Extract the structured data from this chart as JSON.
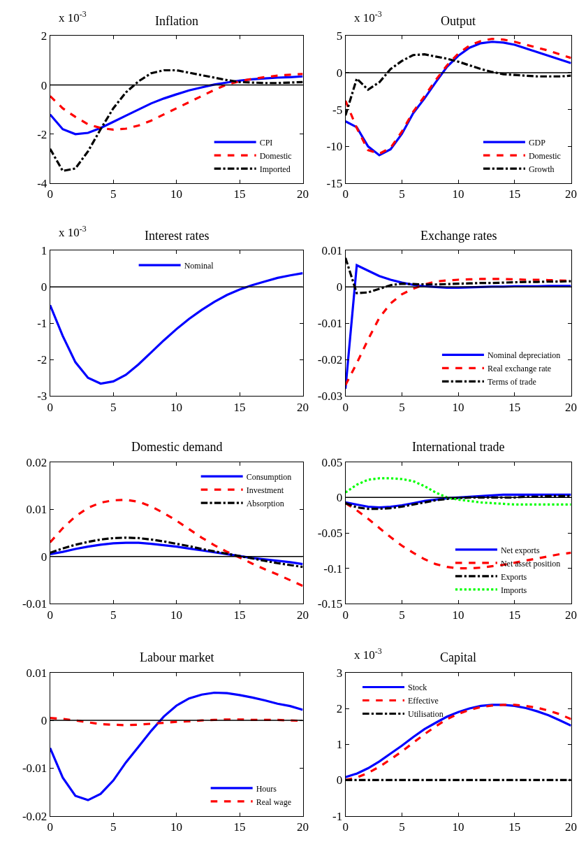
{
  "chart_data": [
    {
      "type": "line",
      "title": "Inflation",
      "annotations": [
        "x 10$^{-3}$"
      ],
      "x": [
        0,
        1,
        2,
        3,
        4,
        5,
        6,
        7,
        8,
        9,
        10,
        11,
        12,
        13,
        14,
        15,
        16,
        17,
        18,
        19,
        20
      ],
      "xlim": [
        0,
        20
      ],
      "xticks": [
        0,
        5,
        10,
        15,
        20
      ],
      "ylim": [
        -4,
        2
      ],
      "yticks": [
        -4,
        -2,
        0,
        2
      ],
      "legend": "bottom right",
      "ref_lines": [
        {
          "axis": "y",
          "value": 0,
          "color": "#000000"
        }
      ],
      "series": [
        {
          "name": "CPI",
          "color": "#0000ff",
          "line_style": "solid",
          "values": [
            -1.2,
            -1.8,
            -2.0,
            -1.95,
            -1.75,
            -1.5,
            -1.25,
            -1.0,
            -0.75,
            -0.55,
            -0.38,
            -0.22,
            -0.1,
            0.02,
            0.1,
            0.18,
            0.23,
            0.27,
            0.3,
            0.32,
            0.35
          ]
        },
        {
          "name": "Domestic",
          "color": "#ff0000",
          "line_style": "dashed",
          "values": [
            -0.45,
            -0.95,
            -1.3,
            -1.6,
            -1.75,
            -1.82,
            -1.78,
            -1.65,
            -1.45,
            -1.2,
            -0.95,
            -0.7,
            -0.45,
            -0.2,
            0.02,
            0.15,
            0.25,
            0.32,
            0.38,
            0.42,
            0.45
          ]
        },
        {
          "name": "Imported",
          "color": "#000000",
          "line_style": "dashdot",
          "values": [
            -2.6,
            -3.5,
            -3.4,
            -2.7,
            -1.8,
            -0.95,
            -0.3,
            0.15,
            0.48,
            0.6,
            0.6,
            0.5,
            0.4,
            0.3,
            0.2,
            0.12,
            0.1,
            0.08,
            0.08,
            0.1,
            0.12
          ]
        }
      ]
    },
    {
      "type": "line",
      "title": "Output",
      "annotations": [
        "x 10$^{-3}$"
      ],
      "x": [
        0,
        1,
        2,
        3,
        4,
        5,
        6,
        7,
        8,
        9,
        10,
        11,
        12,
        13,
        14,
        15,
        16,
        17,
        18,
        19,
        20
      ],
      "xlim": [
        0,
        20
      ],
      "xticks": [
        0,
        5,
        10,
        15,
        20
      ],
      "ylim": [
        -15,
        5
      ],
      "yticks": [
        -15,
        -10,
        -5,
        0,
        5
      ],
      "legend": "bottom right",
      "ref_lines": [
        {
          "axis": "y",
          "value": 0,
          "color": "#000000"
        }
      ],
      "series": [
        {
          "name": "GDP",
          "color": "#0000ff",
          "line_style": "solid",
          "values": [
            -6.6,
            -7.4,
            -10,
            -11.2,
            -10.4,
            -8.3,
            -5.5,
            -3.5,
            -1.3,
            0.8,
            2.3,
            3.4,
            4.0,
            4.2,
            4.1,
            3.8,
            3.3,
            2.8,
            2.3,
            1.8,
            1.3
          ]
        },
        {
          "name": "Domestic",
          "color": "#ff0000",
          "line_style": "dashed",
          "values": [
            -3.8,
            -7.5,
            -10.5,
            -11.0,
            -10.2,
            -8.0,
            -5.3,
            -3.2,
            -1.0,
            1.0,
            2.6,
            3.7,
            4.3,
            4.6,
            4.5,
            4.2,
            3.8,
            3.4,
            3.0,
            2.5,
            2.0
          ]
        },
        {
          "name": "Growth",
          "color": "#000000",
          "line_style": "dashdot",
          "values": [
            -5.8,
            -0.8,
            -2.3,
            -1.3,
            0.5,
            1.6,
            2.4,
            2.5,
            2.2,
            1.9,
            1.5,
            1.0,
            0.5,
            0.1,
            -0.2,
            -0.3,
            -0.4,
            -0.5,
            -0.5,
            -0.5,
            -0.4
          ]
        }
      ]
    },
    {
      "type": "line",
      "title": "Interest rates",
      "annotations": [
        "x 10$^{-3}$"
      ],
      "x": [
        0,
        1,
        2,
        3,
        4,
        5,
        6,
        7,
        8,
        9,
        10,
        11,
        12,
        13,
        14,
        15,
        16,
        17,
        18,
        19,
        20
      ],
      "xlim": [
        0,
        20
      ],
      "xticks": [
        0,
        5,
        10,
        15,
        20
      ],
      "ylim": [
        -3,
        1
      ],
      "yticks": [
        -3,
        -2,
        -1,
        0,
        1
      ],
      "legend": "top",
      "ref_lines": [
        {
          "axis": "y",
          "value": 0,
          "color": "#000000"
        }
      ],
      "series": [
        {
          "name": "Nominal",
          "color": "#0000ff",
          "line_style": "solid",
          "values": [
            -0.5,
            -1.35,
            -2.07,
            -2.5,
            -2.66,
            -2.6,
            -2.42,
            -2.13,
            -1.8,
            -1.47,
            -1.16,
            -0.88,
            -0.63,
            -0.41,
            -0.22,
            -0.07,
            0.05,
            0.15,
            0.25,
            0.32,
            0.38
          ]
        }
      ]
    },
    {
      "type": "line",
      "title": "Exchange rates",
      "x": [
        0,
        1,
        2,
        3,
        4,
        5,
        6,
        7,
        8,
        9,
        10,
        11,
        12,
        13,
        14,
        15,
        16,
        17,
        18,
        19,
        20
      ],
      "xlim": [
        0,
        20
      ],
      "xticks": [
        0,
        5,
        10,
        15,
        20
      ],
      "ylim": [
        -0.03,
        0.01
      ],
      "yticks": [
        -0.03,
        -0.02,
        -0.01,
        0,
        0.01
      ],
      "legend": "bottom right",
      "ref_lines": [
        {
          "axis": "y",
          "value": 0,
          "color": "#000000"
        }
      ],
      "series": [
        {
          "name": "Nominal depreciation",
          "color": "#0000ff",
          "line_style": "solid",
          "values": [
            -0.028,
            0.006,
            0.0045,
            0.003,
            0.002,
            0.0012,
            0.0006,
            0.0002,
            0.0,
            -0.0002,
            -0.0002,
            -0.0001,
            0.0,
            0.0001,
            0.0001,
            0.0002,
            0.0002,
            0.0002,
            0.0003,
            0.0003,
            0.0003
          ]
        },
        {
          "name": "Real exchange rate",
          "color": "#ff0000",
          "line_style": "dashed",
          "values": [
            -0.027,
            -0.021,
            -0.0145,
            -0.0085,
            -0.0045,
            -0.002,
            -0.0005,
            0.0007,
            0.0015,
            0.0018,
            0.002,
            0.0021,
            0.0022,
            0.0022,
            0.0022,
            0.0021,
            0.002,
            0.002,
            0.0019,
            0.0018,
            0.0017
          ]
        },
        {
          "name": "Terms of trade",
          "color": "#000000",
          "line_style": "dashdot",
          "values": [
            0.008,
            -0.0017,
            -0.0015,
            -0.0005,
            0.0005,
            0.0009,
            0.0008,
            0.0007,
            0.0007,
            0.0008,
            0.0009,
            0.001,
            0.0011,
            0.0011,
            0.0012,
            0.0013,
            0.0014,
            0.0014,
            0.0015,
            0.0015,
            0.0016
          ]
        }
      ]
    },
    {
      "type": "line",
      "title": "Domestic demand",
      "x": [
        0,
        1,
        2,
        3,
        4,
        5,
        6,
        7,
        8,
        9,
        10,
        11,
        12,
        13,
        14,
        15,
        16,
        17,
        18,
        19,
        20
      ],
      "xlim": [
        0,
        20
      ],
      "xticks": [
        0,
        5,
        10,
        15,
        20
      ],
      "ylim": [
        -0.01,
        0.02
      ],
      "yticks": [
        -0.01,
        0,
        0.01,
        0.02
      ],
      "legend": "top right",
      "ref_lines": [
        {
          "axis": "y",
          "value": 0,
          "color": "#000000"
        }
      ],
      "series": [
        {
          "name": "Consumption",
          "color": "#0000ff",
          "line_style": "solid",
          "values": [
            0.0005,
            0.001,
            0.0016,
            0.0021,
            0.0025,
            0.0028,
            0.0029,
            0.0029,
            0.0027,
            0.0024,
            0.0021,
            0.0017,
            0.0013,
            0.0009,
            0.0005,
            0.0001,
            -0.0003,
            -0.0006,
            -0.0009,
            -0.0012,
            -0.0016
          ]
        },
        {
          "name": "Investment",
          "color": "#ff0000",
          "line_style": "dashed",
          "values": [
            0.003,
            0.006,
            0.0085,
            0.0103,
            0.0114,
            0.0119,
            0.012,
            0.0116,
            0.0106,
            0.0092,
            0.0076,
            0.0058,
            0.004,
            0.0024,
            0.001,
            -0.0002,
            -0.0015,
            -0.0027,
            -0.0038,
            -0.005,
            -0.0062
          ]
        },
        {
          "name": "Absorption",
          "color": "#000000",
          "line_style": "dashdot",
          "values": [
            0.0008,
            0.0017,
            0.0025,
            0.0031,
            0.0036,
            0.0039,
            0.004,
            0.0039,
            0.0036,
            0.0032,
            0.0027,
            0.0022,
            0.0016,
            0.0011,
            0.0006,
            0.0001,
            -0.0004,
            -0.0009,
            -0.0014,
            -0.0018,
            -0.0022
          ]
        }
      ]
    },
    {
      "type": "line",
      "title": "International trade",
      "x": [
        0,
        1,
        2,
        3,
        4,
        5,
        6,
        7,
        8,
        9,
        10,
        11,
        12,
        13,
        14,
        15,
        16,
        17,
        18,
        19,
        20
      ],
      "xlim": [
        0,
        20
      ],
      "xticks": [
        0,
        5,
        10,
        15,
        20
      ],
      "ylim": [
        -0.15,
        0.05
      ],
      "yticks": [
        -0.15,
        -0.1,
        -0.05,
        0,
        0.05
      ],
      "legend": "bottom right",
      "ref_lines": [
        {
          "axis": "y",
          "value": 0,
          "color": "#000000"
        }
      ],
      "series": [
        {
          "name": "Net exports",
          "color": "#0000ff",
          "line_style": "solid",
          "values": [
            -0.007,
            -0.01,
            -0.013,
            -0.014,
            -0.013,
            -0.011,
            -0.008,
            -0.005,
            -0.003,
            -0.001,
            0.0,
            0.001,
            0.002,
            0.003,
            0.004,
            0.004,
            0.004,
            0.004,
            0.004,
            0.004,
            0.004
          ]
        },
        {
          "name": "Net asset position",
          "color": "#ff0000",
          "line_style": "dashed",
          "values": [
            -0.008,
            -0.018,
            -0.03,
            -0.043,
            -0.056,
            -0.068,
            -0.078,
            -0.087,
            -0.094,
            -0.098,
            -0.1,
            -0.1,
            -0.099,
            -0.097,
            -0.095,
            -0.092,
            -0.089,
            -0.086,
            -0.083,
            -0.08,
            -0.078
          ]
        },
        {
          "name": "Exports",
          "color": "#000000",
          "line_style": "dashdot",
          "values": [
            -0.008,
            -0.014,
            -0.016,
            -0.016,
            -0.015,
            -0.013,
            -0.01,
            -0.007,
            -0.004,
            -0.002,
            -0.001,
            0.0,
            0.0,
            0.0,
            0.0,
            0.0,
            0.001,
            0.001,
            0.002,
            0.002,
            0.002
          ]
        },
        {
          "name": "Imports",
          "color": "#00ff00",
          "line_style": "dotted",
          "values": [
            0.007,
            0.018,
            0.025,
            0.027,
            0.027,
            0.026,
            0.023,
            0.016,
            0.007,
            0.0,
            -0.003,
            -0.005,
            -0.007,
            -0.008,
            -0.009,
            -0.01,
            -0.01,
            -0.01,
            -0.01,
            -0.01,
            -0.01
          ]
        }
      ]
    },
    {
      "type": "line",
      "title": "Labour market",
      "x": [
        0,
        1,
        2,
        3,
        4,
        5,
        6,
        7,
        8,
        9,
        10,
        11,
        12,
        13,
        14,
        15,
        16,
        17,
        18,
        19,
        20
      ],
      "xlim": [
        0,
        20
      ],
      "xticks": [
        0,
        5,
        10,
        15,
        20
      ],
      "ylim": [
        -0.02,
        0.01
      ],
      "yticks": [
        -0.02,
        -0.01,
        0,
        0.01
      ],
      "legend": "bottom right",
      "ref_lines": [
        {
          "axis": "y",
          "value": 0,
          "color": "#000000"
        }
      ],
      "series": [
        {
          "name": "Hours",
          "color": "#0000ff",
          "line_style": "solid",
          "values": [
            -0.0058,
            -0.012,
            -0.0158,
            -0.0167,
            -0.0154,
            -0.0126,
            -0.0088,
            -0.0055,
            -0.0022,
            0.0008,
            0.0031,
            0.0046,
            0.0054,
            0.0058,
            0.0057,
            0.0053,
            0.0048,
            0.0042,
            0.0035,
            0.003,
            0.0022
          ]
        },
        {
          "name": "Real wage",
          "color": "#ff0000",
          "line_style": "dashed",
          "values": [
            0.0005,
            0.0003,
            0.0,
            -0.0004,
            -0.0008,
            -0.0009,
            -0.001,
            -0.0009,
            -0.0007,
            -0.0005,
            -0.0003,
            -0.0002,
            0.0,
            0.0001,
            0.0002,
            0.0002,
            0.0001,
            0.0001,
            0.0001,
            0.0,
            -0.0001
          ]
        }
      ]
    },
    {
      "type": "line",
      "title": "Capital",
      "annotations": [
        "x 10$^{-3}$"
      ],
      "x": [
        0,
        1,
        2,
        3,
        4,
        5,
        6,
        7,
        8,
        9,
        10,
        11,
        12,
        13,
        14,
        15,
        16,
        17,
        18,
        19,
        20
      ],
      "xlim": [
        0,
        20
      ],
      "xticks": [
        0,
        5,
        10,
        15,
        20
      ],
      "ylim": [
        -1,
        3
      ],
      "yticks": [
        -1,
        0,
        1,
        2,
        3
      ],
      "legend": "top left",
      "series": [
        {
          "name": "Stock",
          "color": "#0000ff",
          "line_style": "solid",
          "values": [
            0.08,
            0.18,
            0.33,
            0.52,
            0.74,
            0.96,
            1.2,
            1.42,
            1.6,
            1.77,
            1.9,
            2.0,
            2.07,
            2.1,
            2.1,
            2.07,
            2.01,
            1.92,
            1.81,
            1.67,
            1.52
          ]
        },
        {
          "name": "Effective",
          "color": "#ff0000",
          "line_style": "dashed",
          "values": [
            0.0,
            0.07,
            0.2,
            0.37,
            0.58,
            0.8,
            1.04,
            1.28,
            1.5,
            1.7,
            1.85,
            1.96,
            2.04,
            2.08,
            2.1,
            2.1,
            2.07,
            2.02,
            1.94,
            1.84,
            1.7
          ]
        },
        {
          "name": "Utilisation",
          "color": "#000000",
          "line_style": "dashdot",
          "values": [
            0,
            0,
            0,
            0,
            0,
            0,
            0,
            0,
            0,
            0,
            0,
            0,
            0,
            0,
            0,
            0,
            0,
            0,
            0,
            0,
            0
          ]
        }
      ]
    }
  ]
}
